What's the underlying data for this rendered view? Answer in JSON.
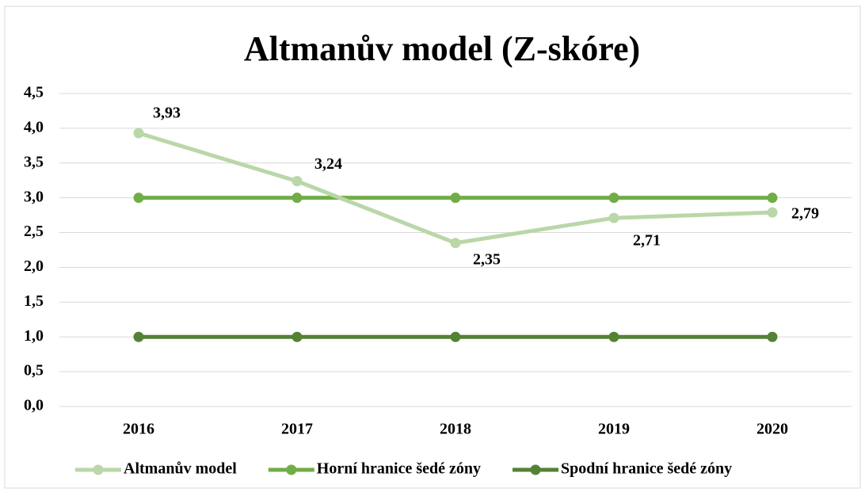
{
  "chart_data": {
    "type": "line",
    "title": "Altmanův model (Z-skóre)",
    "categories": [
      "2016",
      "2017",
      "2018",
      "2019",
      "2020"
    ],
    "series": [
      {
        "name": "Altmanův model",
        "color": "#b9d7a8",
        "values": [
          3.93,
          3.24,
          2.35,
          2.71,
          2.79
        ],
        "value_labels": [
          "3,93",
          "3,24",
          "2,35",
          "2,71",
          "2,79"
        ]
      },
      {
        "name": "Horní hranice šedé zóny",
        "color": "#70ad47",
        "values": [
          3,
          3,
          3,
          3,
          3
        ]
      },
      {
        "name": "Spodní hranice šedé zóny",
        "color": "#548235",
        "values": [
          1,
          1,
          1,
          1,
          1
        ]
      }
    ],
    "ylim": [
      0,
      4.5
    ],
    "yticks": [
      {
        "value": 0,
        "label": "0,0"
      },
      {
        "value": 0.5,
        "label": "0,5"
      },
      {
        "value": 1,
        "label": "1,0"
      },
      {
        "value": 1.5,
        "label": "1,5"
      },
      {
        "value": 2,
        "label": "2,0"
      },
      {
        "value": 2.5,
        "label": "2,5"
      },
      {
        "value": 3,
        "label": "3,0"
      },
      {
        "value": 3.5,
        "label": "3,5"
      },
      {
        "value": 4,
        "label": "4,0"
      },
      {
        "value": 4.5,
        "label": "4,5"
      }
    ],
    "grid": true,
    "legend": "bottom"
  }
}
